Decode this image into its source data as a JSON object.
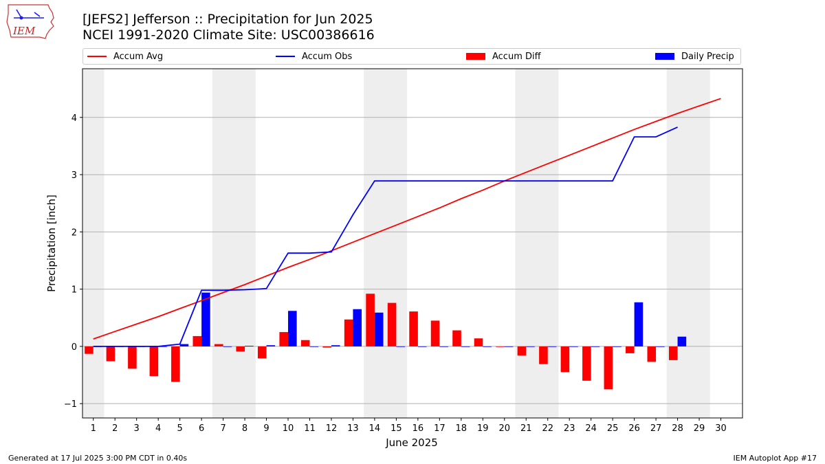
{
  "header": {
    "title_line1": "[JEFS2] Jefferson :: Precipitation for Jun 2025",
    "title_line2": "NCEI 1991-2020 Climate Site: USC00386616"
  },
  "logo": {
    "text": "IEM",
    "icon": "iem-iowa-state-logo-icon"
  },
  "legend": {
    "items": [
      {
        "label": "Accum Avg",
        "kind": "line",
        "color": "#ff0000"
      },
      {
        "label": "Accum Obs",
        "kind": "line",
        "color": "#0000ff"
      },
      {
        "label": "Accum Diff",
        "kind": "bar",
        "color": "#ff0000"
      },
      {
        "label": "Daily Precip",
        "kind": "bar",
        "color": "#0000ff"
      }
    ],
    "placement": "top, above plot"
  },
  "footer": {
    "left": "Generated at 17 Jul 2025 3:00 PM CDT in 0.40s",
    "right": "IEM Autoplot App #17"
  },
  "chart_data": {
    "type": "bar",
    "xlabel": "June 2025",
    "ylabel": "Precipitation [inch]",
    "categories": [
      "1",
      "2",
      "3",
      "4",
      "5",
      "6",
      "7",
      "8",
      "9",
      "10",
      "11",
      "12",
      "13",
      "14",
      "15",
      "16",
      "17",
      "18",
      "19",
      "20",
      "21",
      "22",
      "23",
      "24",
      "25",
      "26",
      "27",
      "28",
      "29",
      "30"
    ],
    "ylim": [
      -1.25,
      4.85
    ],
    "yticks": [
      -1,
      0,
      1,
      2,
      3,
      4
    ],
    "grid": "horizontal",
    "weekend_shading": [
      [
        1,
        1
      ],
      [
        7,
        8
      ],
      [
        14,
        15
      ],
      [
        21,
        22
      ],
      [
        28,
        29
      ]
    ],
    "shade_color": "#eeeeee",
    "series": [
      {
        "name": "Accum Avg",
        "kind": "line",
        "color": "#ff0000",
        "values": [
          0.13,
          0.26,
          0.39,
          0.52,
          0.66,
          0.8,
          0.94,
          1.08,
          1.23,
          1.38,
          1.52,
          1.67,
          1.82,
          1.97,
          2.12,
          2.27,
          2.42,
          2.58,
          2.73,
          2.89,
          3.04,
          3.19,
          3.34,
          3.49,
          3.64,
          3.79,
          3.93,
          4.07,
          4.2,
          4.33
        ]
      },
      {
        "name": "Accum Obs",
        "kind": "line",
        "color": "#0000ff",
        "values": [
          0.0,
          0.0,
          0.0,
          0.0,
          0.04,
          0.98,
          0.98,
          0.99,
          1.01,
          1.63,
          1.63,
          1.65,
          2.3,
          2.89,
          2.89,
          2.89,
          2.89,
          2.89,
          2.89,
          2.89,
          2.89,
          2.89,
          2.89,
          2.89,
          2.89,
          3.66,
          3.66,
          3.83,
          null,
          null
        ]
      },
      {
        "name": "Accum Diff",
        "kind": "bar",
        "color": "#ff0000",
        "values": [
          -0.13,
          -0.26,
          -0.39,
          -0.52,
          -0.62,
          0.18,
          0.04,
          -0.09,
          -0.21,
          0.25,
          0.11,
          -0.02,
          0.47,
          0.92,
          0.76,
          0.61,
          0.45,
          0.28,
          0.14,
          -0.01,
          -0.16,
          -0.31,
          -0.45,
          -0.6,
          -0.75,
          -0.12,
          -0.27,
          -0.24,
          null,
          null
        ]
      },
      {
        "name": "Daily Precip",
        "kind": "bar",
        "color": "#0000ff",
        "values": [
          0.0,
          0.0,
          0.0,
          0.0,
          0.04,
          0.94,
          0.0,
          0.01,
          0.02,
          0.62,
          0.0,
          0.02,
          0.65,
          0.59,
          0.0,
          0.0,
          0.0,
          0.0,
          0.0,
          0.0,
          0.0,
          0.0,
          0.0,
          0.0,
          0.0,
          0.77,
          0.0,
          0.17,
          null,
          null
        ]
      }
    ]
  }
}
